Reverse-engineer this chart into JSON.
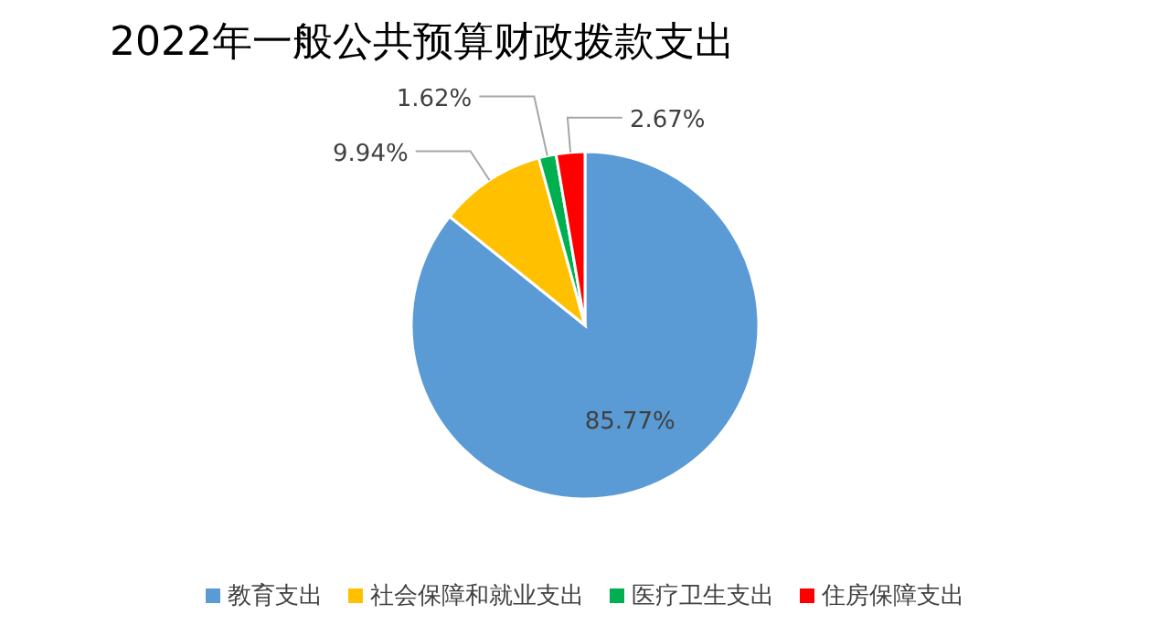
{
  "chart_data": {
    "type": "pie",
    "title": "2022年一般公共预算财政拨款支出",
    "categories": [
      "教育支出",
      "社会保障和就业支出",
      "医疗卫生支出",
      "住房保障支出"
    ],
    "values": [
      85.77,
      9.94,
      1.62,
      2.67
    ],
    "colors": [
      "#5b9bd5",
      "#ffc000",
      "#00b050",
      "#ff0000"
    ],
    "value_labels": [
      "85.77%",
      "9.94%",
      "1.62%",
      "2.67%"
    ],
    "legend": "bottom"
  }
}
